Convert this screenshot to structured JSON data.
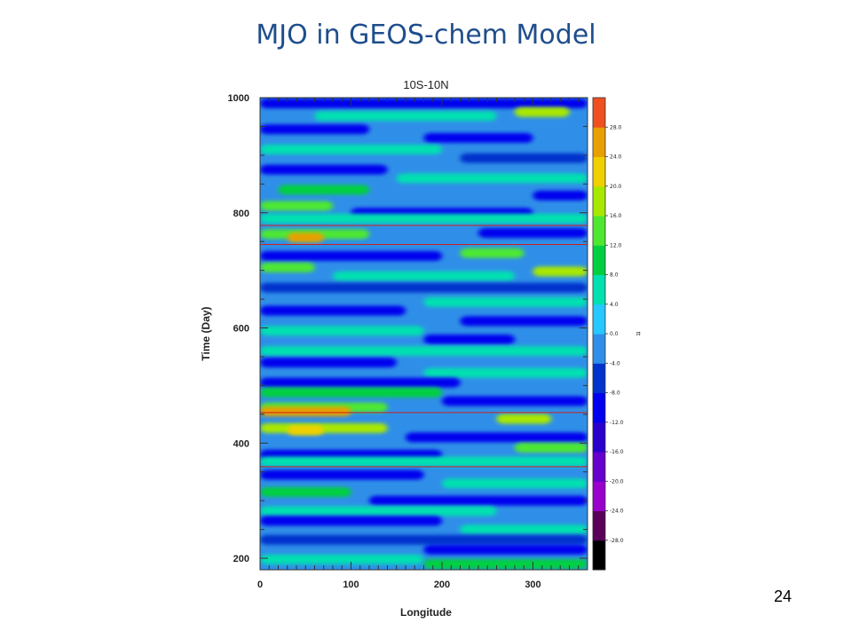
{
  "slide": {
    "title": "MJO in GEOS-chem Model",
    "page_number": "24"
  },
  "chart_data": {
    "type": "heatmap",
    "title": "10S-10N",
    "xlabel": "Longitude",
    "ylabel": "Time (Day)",
    "xlim": [
      0,
      360
    ],
    "ylim": [
      180,
      1000
    ],
    "x_ticks": [
      0,
      100,
      200,
      300
    ],
    "y_ticks": [
      200,
      400,
      600,
      800,
      1000
    ],
    "colorbar": {
      "label": "tt",
      "levels": [
        -28.0,
        -24.0,
        -20.0,
        -16.0,
        -12.0,
        -8.0,
        -4.0,
        0.0,
        4.0,
        8.0,
        12.0,
        16.0,
        20.0,
        24.0,
        28.0
      ],
      "level_labels": [
        "-28.0",
        "-24.0",
        "-20.0",
        "-16.0",
        "-12.0",
        "-8.0",
        "-4.0",
        "0.0",
        "4.0",
        "8.0",
        "12.0",
        "16.0",
        "20.0",
        "24.0",
        "28.0"
      ],
      "colors": [
        "#000000",
        "#5a005a",
        "#9900cc",
        "#6600cc",
        "#2a00cc",
        "#0000ee",
        "#0033cc",
        "#2f8fe8",
        "#26c8ff",
        "#00e0b0",
        "#00d040",
        "#4ee830",
        "#a8e800",
        "#f0d000",
        "#e8a000",
        "#f05020"
      ]
    },
    "reference_lines_days": [
      778,
      745,
      453,
      359
    ],
    "reference_line_color": "#cc2020",
    "bands": [
      {
        "day": 990,
        "lon_start": 0,
        "lon_end": 360,
        "value": -9
      },
      {
        "day": 968,
        "lon_start": 60,
        "lon_end": 260,
        "value": 6
      },
      {
        "day": 975,
        "lon_start": 280,
        "lon_end": 340,
        "value": 16
      },
      {
        "day": 945,
        "lon_start": 0,
        "lon_end": 120,
        "value": -10
      },
      {
        "day": 930,
        "lon_start": 180,
        "lon_end": 300,
        "value": -9
      },
      {
        "day": 910,
        "lon_start": 0,
        "lon_end": 200,
        "value": 5
      },
      {
        "day": 895,
        "lon_start": 220,
        "lon_end": 360,
        "value": -8
      },
      {
        "day": 875,
        "lon_start": 0,
        "lon_end": 140,
        "value": -11
      },
      {
        "day": 860,
        "lon_start": 150,
        "lon_end": 360,
        "value": 4
      },
      {
        "day": 840,
        "lon_start": 20,
        "lon_end": 120,
        "value": 9
      },
      {
        "day": 830,
        "lon_start": 300,
        "lon_end": 360,
        "value": -12
      },
      {
        "day": 812,
        "lon_start": 0,
        "lon_end": 80,
        "value": 14
      },
      {
        "day": 800,
        "lon_start": 100,
        "lon_end": 300,
        "value": -9
      },
      {
        "day": 790,
        "lon_start": 0,
        "lon_end": 360,
        "value": 5
      },
      {
        "day": 763,
        "lon_start": 0,
        "lon_end": 120,
        "value": 14
      },
      {
        "day": 757,
        "lon_start": 30,
        "lon_end": 70,
        "value": 26
      },
      {
        "day": 765,
        "lon_start": 240,
        "lon_end": 360,
        "value": -9
      },
      {
        "day": 730,
        "lon_start": 220,
        "lon_end": 290,
        "value": 12
      },
      {
        "day": 725,
        "lon_start": 0,
        "lon_end": 200,
        "value": -10
      },
      {
        "day": 705,
        "lon_start": 0,
        "lon_end": 60,
        "value": 15
      },
      {
        "day": 698,
        "lon_start": 300,
        "lon_end": 360,
        "value": 18
      },
      {
        "day": 690,
        "lon_start": 80,
        "lon_end": 280,
        "value": 6
      },
      {
        "day": 670,
        "lon_start": 0,
        "lon_end": 360,
        "value": -8
      },
      {
        "day": 645,
        "lon_start": 180,
        "lon_end": 360,
        "value": 7
      },
      {
        "day": 630,
        "lon_start": 0,
        "lon_end": 160,
        "value": -9
      },
      {
        "day": 612,
        "lon_start": 220,
        "lon_end": 360,
        "value": -10
      },
      {
        "day": 595,
        "lon_start": 0,
        "lon_end": 180,
        "value": 5
      },
      {
        "day": 580,
        "lon_start": 180,
        "lon_end": 280,
        "value": -11
      },
      {
        "day": 560,
        "lon_start": 0,
        "lon_end": 360,
        "value": 6
      },
      {
        "day": 540,
        "lon_start": 0,
        "lon_end": 150,
        "value": -10
      },
      {
        "day": 522,
        "lon_start": 180,
        "lon_end": 360,
        "value": 5
      },
      {
        "day": 505,
        "lon_start": 0,
        "lon_end": 220,
        "value": -9
      },
      {
        "day": 488,
        "lon_start": 0,
        "lon_end": 200,
        "value": 9
      },
      {
        "day": 473,
        "lon_start": 200,
        "lon_end": 360,
        "value": -11
      },
      {
        "day": 462,
        "lon_start": 0,
        "lon_end": 140,
        "value": 12
      },
      {
        "day": 455,
        "lon_start": 0,
        "lon_end": 100,
        "value": 27
      },
      {
        "day": 442,
        "lon_start": 260,
        "lon_end": 320,
        "value": 16
      },
      {
        "day": 426,
        "lon_start": 0,
        "lon_end": 140,
        "value": 16
      },
      {
        "day": 422,
        "lon_start": 30,
        "lon_end": 70,
        "value": 22
      },
      {
        "day": 410,
        "lon_start": 160,
        "lon_end": 360,
        "value": -10
      },
      {
        "day": 392,
        "lon_start": 280,
        "lon_end": 360,
        "value": 14
      },
      {
        "day": 380,
        "lon_start": 0,
        "lon_end": 200,
        "value": -9
      },
      {
        "day": 368,
        "lon_start": 0,
        "lon_end": 360,
        "value": 4
      },
      {
        "day": 345,
        "lon_start": 0,
        "lon_end": 180,
        "value": -10
      },
      {
        "day": 330,
        "lon_start": 200,
        "lon_end": 360,
        "value": 6
      },
      {
        "day": 315,
        "lon_start": 0,
        "lon_end": 100,
        "value": 9
      },
      {
        "day": 300,
        "lon_start": 120,
        "lon_end": 360,
        "value": -9
      },
      {
        "day": 282,
        "lon_start": 0,
        "lon_end": 260,
        "value": 5
      },
      {
        "day": 265,
        "lon_start": 0,
        "lon_end": 200,
        "value": -11
      },
      {
        "day": 250,
        "lon_start": 220,
        "lon_end": 360,
        "value": 6
      },
      {
        "day": 232,
        "lon_start": 0,
        "lon_end": 360,
        "value": -8
      },
      {
        "day": 215,
        "lon_start": 180,
        "lon_end": 360,
        "value": -12
      },
      {
        "day": 198,
        "lon_start": 0,
        "lon_end": 180,
        "value": 4
      },
      {
        "day": 190,
        "lon_start": 180,
        "lon_end": 360,
        "value": 9
      }
    ]
  }
}
